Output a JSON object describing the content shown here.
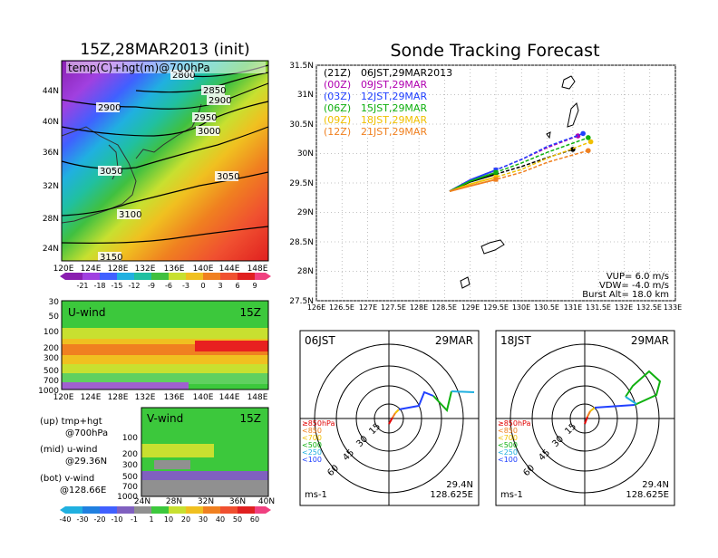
{
  "left_title": "15Z,28MAR2013 (init)",
  "right_title": "Sonde Tracking Forecast",
  "map_panel": {
    "label": "temp(C)+hgt(m)@700hPa",
    "lat_ticks": [
      "44N",
      "40N",
      "36N",
      "32N",
      "28N",
      "24N"
    ],
    "lon_ticks": [
      "120E",
      "124E",
      "128E",
      "132E",
      "136E",
      "140E",
      "144E",
      "148E"
    ],
    "contours": [
      "2800",
      "2850",
      "2900",
      "2900",
      "2950",
      "3000",
      "3050",
      "3050",
      "3100",
      "3150"
    ],
    "colorbar_ticks": [
      "-21",
      "-18",
      "-15",
      "-12",
      "-9",
      "-6",
      "-3",
      "0",
      "3",
      "6",
      "9"
    ]
  },
  "uwind_panel": {
    "label": "U-wind",
    "time": "15Z",
    "p_ticks": [
      "30",
      "50",
      "100",
      "200",
      "300",
      "500",
      "700",
      "1000"
    ],
    "lon_ticks": [
      "120E",
      "124E",
      "128E",
      "132E",
      "136E",
      "140E",
      "144E",
      "148E"
    ]
  },
  "vwind_panel": {
    "label": "V-wind",
    "time": "15Z",
    "p_ticks": [
      "100",
      "200",
      "300",
      "500",
      "700",
      "1000"
    ],
    "lat_ticks": [
      "24N",
      "28N",
      "32N",
      "36N",
      "40N"
    ],
    "colorbar_ticks": [
      "-40",
      "-30",
      "-20",
      "-10",
      "-1",
      "1",
      "10",
      "20",
      "30",
      "40",
      "50",
      "60"
    ]
  },
  "notes": [
    {
      "line1": "(up) tmp+hgt",
      "line2": "@700hPa"
    },
    {
      "line1": "(mid) u-wind",
      "line2": "@29.36N"
    },
    {
      "line1": "(bot) v-wind",
      "line2": "@128.66E"
    }
  ],
  "track_panel": {
    "lat_ticks": [
      "31.5N",
      "31N",
      "30.5N",
      "30N",
      "29.5N",
      "29N",
      "28.5N",
      "28N",
      "27.5N"
    ],
    "lon_ticks": [
      "126E",
      "126.5E",
      "127E",
      "127.5E",
      "128E",
      "128.5E",
      "129E",
      "129.5E",
      "130E",
      "130.5E",
      "131E",
      "131.5E",
      "132E",
      "132.5E",
      "133E"
    ],
    "legend": [
      {
        "code": "(21Z)",
        "label": "06JST,29MAR2013",
        "color": "#000000"
      },
      {
        "code": "(00Z)",
        "label": "09JST,29MAR",
        "color": "#b000b0"
      },
      {
        "code": "(03Z)",
        "label": "12JST,29MAR",
        "color": "#2040ff"
      },
      {
        "code": "(06Z)",
        "label": "15JST,29MAR",
        "color": "#10b010"
      },
      {
        "code": "(09Z)",
        "label": "18JST,29MAR",
        "color": "#f0c000"
      },
      {
        "code": "(12Z)",
        "label": "21JST,29MAR",
        "color": "#f08020"
      }
    ],
    "params": [
      "VUP= 6.0 m/s",
      "VDW= -4.0 m/s",
      "Burst Alt= 18.0 km"
    ]
  },
  "hodo_left": {
    "time": "06JST",
    "date": "29MAR",
    "lat": "29.4N",
    "lon": "128.625E",
    "unit": "ms-1",
    "ring_labels": [
      "15",
      "30",
      "45",
      "60"
    ]
  },
  "hodo_right": {
    "time": "18JST",
    "date": "29MAR",
    "lat": "29.4N",
    "lon": "128.625E",
    "unit": "ms-1",
    "ring_labels": [
      "15",
      "30",
      "45",
      "60"
    ]
  },
  "hodo_legend": [
    "≥850hPa",
    "<850",
    "<700",
    "<500",
    "<250",
    "<100"
  ],
  "colors": {
    "hodo_legend": [
      "#e00000",
      "#f08020",
      "#f0c000",
      "#10b010",
      "#20b0e0",
      "#2040ff"
    ]
  },
  "chart_data": {
    "type": "line",
    "title": "Sonde Tracking Forecast",
    "x_range": [
      126,
      133
    ],
    "y_range": [
      27.5,
      31.5
    ],
    "series": [
      {
        "name": "(21Z) 06JST,29MAR2013",
        "x": [
          128.6,
          129.0,
          129.5,
          130.0,
          130.5,
          131.0
        ],
        "y": [
          29.36,
          29.52,
          29.65,
          29.78,
          29.93,
          30.07
        ]
      },
      {
        "name": "(00Z) 09JST,29MAR",
        "x": [
          128.6,
          129.0,
          129.5,
          130.0,
          130.5,
          131.1
        ],
        "y": [
          29.36,
          29.55,
          29.72,
          29.9,
          30.1,
          30.3
        ]
      },
      {
        "name": "(03Z) 12JST,29MAR",
        "x": [
          128.6,
          129.0,
          129.5,
          130.0,
          130.5,
          131.2
        ],
        "y": [
          29.36,
          29.55,
          29.72,
          29.9,
          30.12,
          30.34
        ]
      },
      {
        "name": "(06Z) 15JST,29MAR",
        "x": [
          128.6,
          129.0,
          129.5,
          130.0,
          130.5,
          131.3
        ],
        "y": [
          29.36,
          29.53,
          29.68,
          29.84,
          30.02,
          30.27
        ]
      },
      {
        "name": "(09Z) 18JST,29MAR",
        "x": [
          128.6,
          129.0,
          129.5,
          130.0,
          130.5,
          131.35
        ],
        "y": [
          29.36,
          29.48,
          29.6,
          29.73,
          29.92,
          30.2
        ]
      },
      {
        "name": "(12Z) 21JST,29MAR",
        "x": [
          128.6,
          129.0,
          129.5,
          130.0,
          130.5,
          131.3
        ],
        "y": [
          29.36,
          29.45,
          29.56,
          29.68,
          29.85,
          30.05
        ]
      }
    ]
  }
}
